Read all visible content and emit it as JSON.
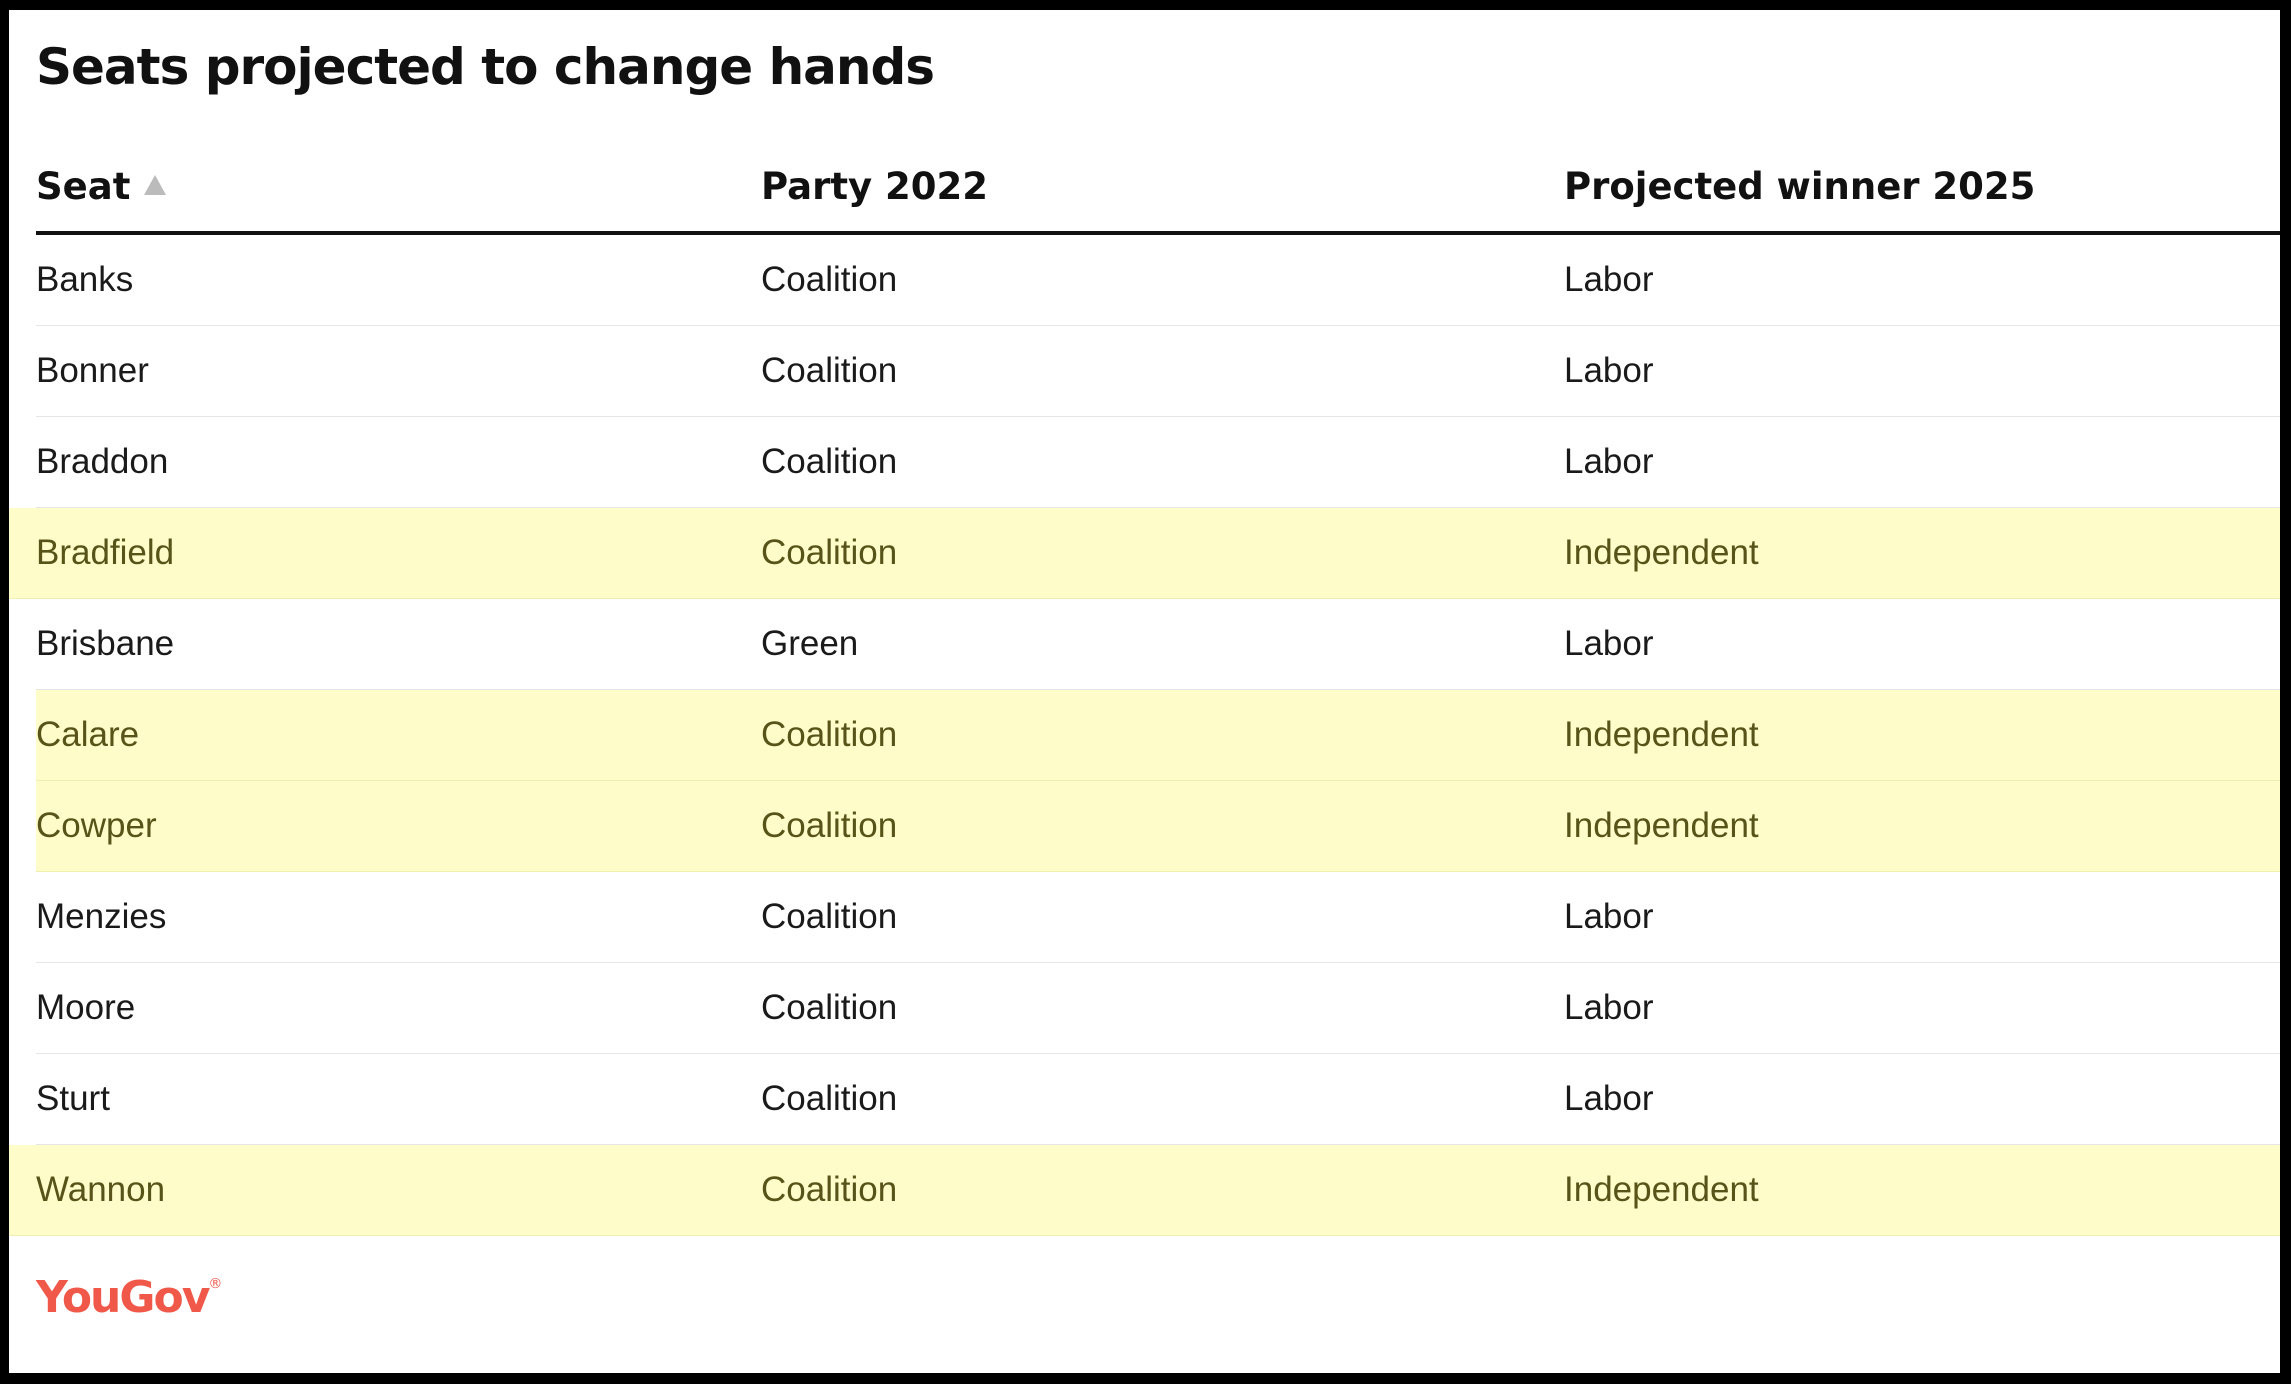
{
  "title": "Seats projected to change hands",
  "columns": {
    "seat": "Seat",
    "party_2022": "Party 2022",
    "winner_2025": "Projected winner 2025"
  },
  "sort": {
    "column": "Seat",
    "direction": "ascending",
    "icon": "sort-up-icon"
  },
  "highlight_color": "#fefcc8",
  "rows": [
    {
      "seat": "Banks",
      "party_2022": "Coalition",
      "winner_2025": "Labor",
      "highlighted": false
    },
    {
      "seat": "Bonner",
      "party_2022": "Coalition",
      "winner_2025": "Labor",
      "highlighted": false
    },
    {
      "seat": "Braddon",
      "party_2022": "Coalition",
      "winner_2025": "Labor",
      "highlighted": false
    },
    {
      "seat": "Bradfield",
      "party_2022": "Coalition",
      "winner_2025": "Independent",
      "highlighted": true
    },
    {
      "seat": "Brisbane",
      "party_2022": "Green",
      "winner_2025": "Labor",
      "highlighted": false
    },
    {
      "seat": "Calare",
      "party_2022": "Coalition",
      "winner_2025": "Independent",
      "highlighted": true
    },
    {
      "seat": "Cowper",
      "party_2022": "Coalition",
      "winner_2025": "Independent",
      "highlighted": true
    },
    {
      "seat": "Menzies",
      "party_2022": "Coalition",
      "winner_2025": "Labor",
      "highlighted": false
    },
    {
      "seat": "Moore",
      "party_2022": "Coalition",
      "winner_2025": "Labor",
      "highlighted": false
    },
    {
      "seat": "Sturt",
      "party_2022": "Coalition",
      "winner_2025": "Labor",
      "highlighted": false
    },
    {
      "seat": "Wannon",
      "party_2022": "Coalition",
      "winner_2025": "Independent",
      "highlighted": true
    }
  ],
  "logo": {
    "text": "YouGov",
    "color": "#f0584a"
  },
  "chart_data": {
    "type": "table",
    "title": "Seats projected to change hands",
    "columns": [
      "Seat",
      "Party 2022",
      "Projected winner 2025"
    ],
    "rows": [
      [
        "Banks",
        "Coalition",
        "Labor"
      ],
      [
        "Bonner",
        "Coalition",
        "Labor"
      ],
      [
        "Braddon",
        "Coalition",
        "Labor"
      ],
      [
        "Bradfield",
        "Coalition",
        "Independent"
      ],
      [
        "Brisbane",
        "Green",
        "Labor"
      ],
      [
        "Calare",
        "Coalition",
        "Independent"
      ],
      [
        "Cowper",
        "Coalition",
        "Independent"
      ],
      [
        "Menzies",
        "Coalition",
        "Labor"
      ],
      [
        "Moore",
        "Coalition",
        "Labor"
      ],
      [
        "Sturt",
        "Coalition",
        "Labor"
      ],
      [
        "Wannon",
        "Coalition",
        "Independent"
      ]
    ]
  }
}
